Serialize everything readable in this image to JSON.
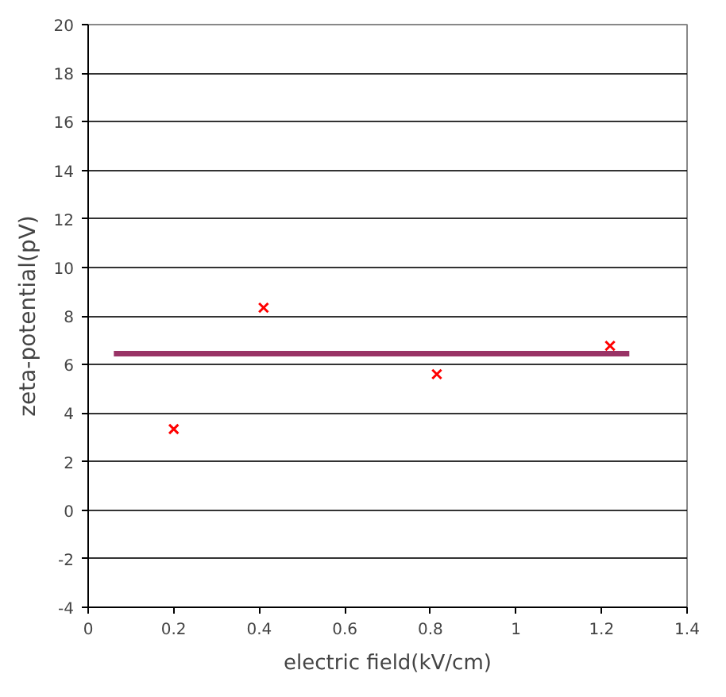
{
  "chart_data": {
    "type": "scatter",
    "xlabel": "electric field(kV/cm)",
    "ylabel": "zeta-potential(pV)",
    "xlim": [
      0,
      1.4
    ],
    "xticks": [
      0,
      0.2,
      0.4,
      0.6,
      0.8,
      1,
      1.2,
      1.4
    ],
    "ylim": [
      -4,
      20
    ],
    "yticks": [
      -4,
      -2,
      0,
      2,
      4,
      6,
      8,
      10,
      12,
      14,
      16,
      18,
      20
    ],
    "grid": "y",
    "series": [
      {
        "marker": "cross",
        "color": "#ff0000",
        "x": [
          0.2,
          0.41,
          0.815,
          1.22
        ],
        "values": [
          3.34,
          8.34,
          5.6,
          6.77
        ]
      },
      {
        "type": "line",
        "color": "#993366",
        "x": [
          0.06,
          1.265
        ],
        "values": [
          6.45,
          6.45
        ]
      }
    ]
  }
}
